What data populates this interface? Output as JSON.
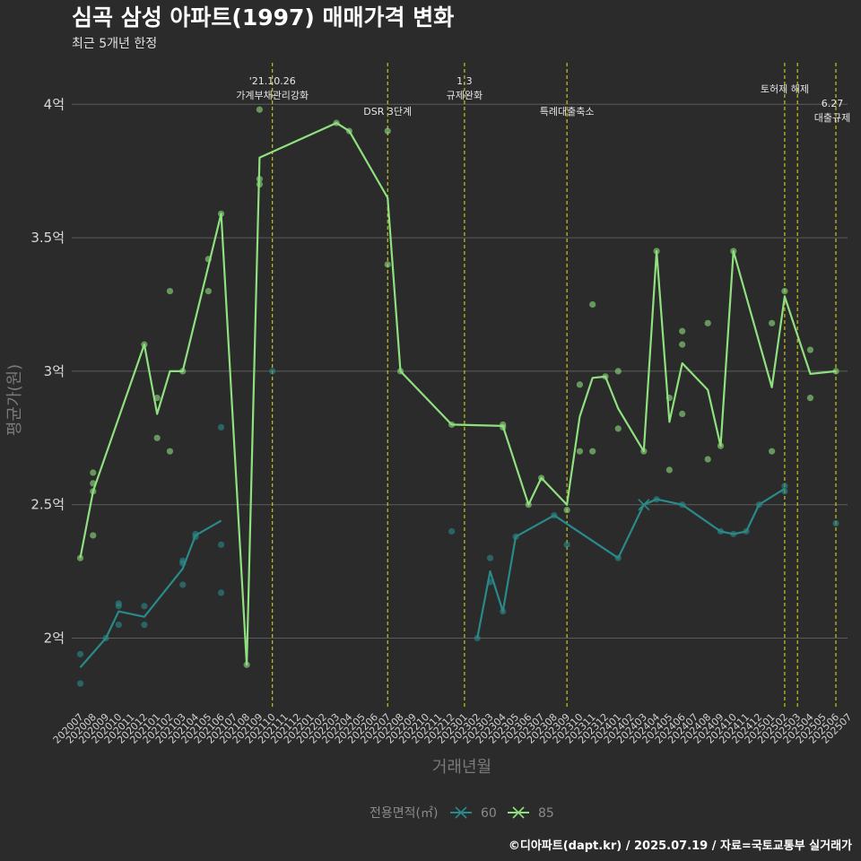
{
  "chart_data": {
    "type": "line",
    "title": "심곡 삼성 아파트(1997) 매매가격 변화",
    "subtitle": "최근 5개년 한정",
    "xlabel": "거래년월",
    "ylabel": "평균가(원)",
    "caption": "©디아파트(dapt.kr) / 2025.07.19 / 자료=국토교통부 실거래가",
    "categories": [
      "202007",
      "202008",
      "202009",
      "202010",
      "202011",
      "202012",
      "202101",
      "202102",
      "202103",
      "202104",
      "202105",
      "202106",
      "202107",
      "202108",
      "202109",
      "202110",
      "202111",
      "202112",
      "202201",
      "202202",
      "202203",
      "202204",
      "202205",
      "202206",
      "202207",
      "202208",
      "202209",
      "202210",
      "202211",
      "202212",
      "202301",
      "202302",
      "202303",
      "202304",
      "202305",
      "202306",
      "202307",
      "202308",
      "202309",
      "202310",
      "202311",
      "202312",
      "202401",
      "202402",
      "202403",
      "202404",
      "202405",
      "202406",
      "202407",
      "202408",
      "202409",
      "202410",
      "202411",
      "202412",
      "202501",
      "202502",
      "202503",
      "202504",
      "202505",
      "202506",
      "202507"
    ],
    "yticks": [
      {
        "value": 2.0,
        "label": "2억"
      },
      {
        "value": 2.5,
        "label": "2.5억"
      },
      {
        "value": 3.0,
        "label": "3억"
      },
      {
        "value": 3.5,
        "label": "3.5억"
      },
      {
        "value": 4.0,
        "label": "4억"
      }
    ],
    "ylim": [
      1.7,
      4.15
    ],
    "grid": true,
    "legend": {
      "title": "전용면적(㎡)",
      "position": "bottom"
    },
    "series": [
      {
        "name": "60",
        "color": "#2a8a8a",
        "line": [
          {
            "x": "202007",
            "y": 1.89
          },
          {
            "x": "202009",
            "y": 2.0
          },
          {
            "x": "202010",
            "y": 2.1
          },
          {
            "x": "202012",
            "y": 2.08
          },
          {
            "x": "202103",
            "y": 2.26
          },
          {
            "x": "202104",
            "y": 2.385
          },
          {
            "x": "202106",
            "y": 2.44
          },
          {
            "x": "202302",
            "y": 2.0
          },
          {
            "x": "202303",
            "y": 2.25
          },
          {
            "x": "202304",
            "y": 2.1
          },
          {
            "x": "202305",
            "y": 2.38
          },
          {
            "x": "202308",
            "y": 2.46
          },
          {
            "x": "202401",
            "y": 2.3
          },
          {
            "x": "202403",
            "y": 2.5
          },
          {
            "x": "202404",
            "y": 2.52
          },
          {
            "x": "202406",
            "y": 2.5
          },
          {
            "x": "202409",
            "y": 2.4
          },
          {
            "x": "202410",
            "y": 2.39
          },
          {
            "x": "202411",
            "y": 2.4
          },
          {
            "x": "202412",
            "y": 2.5
          },
          {
            "x": "202502",
            "y": 2.56
          }
        ],
        "breaks_after": [
          "202106"
        ],
        "points": [
          {
            "x": "202007",
            "y": 1.94
          },
          {
            "x": "202007",
            "y": 1.83
          },
          {
            "x": "202009",
            "y": 2.0
          },
          {
            "x": "202010",
            "y": 2.05
          },
          {
            "x": "202010",
            "y": 2.12
          },
          {
            "x": "202010",
            "y": 2.13
          },
          {
            "x": "202012",
            "y": 2.05
          },
          {
            "x": "202012",
            "y": 2.12
          },
          {
            "x": "202103",
            "y": 2.2
          },
          {
            "x": "202103",
            "y": 2.28
          },
          {
            "x": "202103",
            "y": 2.29
          },
          {
            "x": "202104",
            "y": 2.38
          },
          {
            "x": "202104",
            "y": 2.39
          },
          {
            "x": "202106",
            "y": 2.17
          },
          {
            "x": "202106",
            "y": 2.35
          },
          {
            "x": "202106",
            "y": 2.79
          },
          {
            "x": "202110",
            "y": 3.0
          },
          {
            "x": "202212",
            "y": 2.4
          },
          {
            "x": "202302",
            "y": 2.0
          },
          {
            "x": "202303",
            "y": 2.3
          },
          {
            "x": "202303",
            "y": 2.21
          },
          {
            "x": "202304",
            "y": 2.1
          },
          {
            "x": "202305",
            "y": 2.38
          },
          {
            "x": "202308",
            "y": 2.46
          },
          {
            "x": "202309",
            "y": 2.35
          },
          {
            "x": "202401",
            "y": 2.3
          },
          {
            "x": "202404",
            "y": 2.52
          },
          {
            "x": "202406",
            "y": 2.5
          },
          {
            "x": "202409",
            "y": 2.4
          },
          {
            "x": "202410",
            "y": 2.39
          },
          {
            "x": "202411",
            "y": 2.4
          },
          {
            "x": "202412",
            "y": 2.5
          },
          {
            "x": "202502",
            "y": 2.55
          },
          {
            "x": "202502",
            "y": 2.57
          },
          {
            "x": "202506",
            "y": 2.43
          }
        ],
        "cross_marker": {
          "x": "202403",
          "y": 2.5
        }
      },
      {
        "name": "85",
        "color": "#8fe07f",
        "line": [
          {
            "x": "202007",
            "y": 2.3
          },
          {
            "x": "202008",
            "y": 2.55
          },
          {
            "x": "202012",
            "y": 3.1
          },
          {
            "x": "202101",
            "y": 2.84
          },
          {
            "x": "202102",
            "y": 3.0
          },
          {
            "x": "202103",
            "y": 3.0
          },
          {
            "x": "202106",
            "y": 3.59
          },
          {
            "x": "202108",
            "y": 1.9
          },
          {
            "x": "202109",
            "y": 3.8
          },
          {
            "x": "202203",
            "y": 3.93
          },
          {
            "x": "202204",
            "y": 3.9
          },
          {
            "x": "202207",
            "y": 3.65
          },
          {
            "x": "202208",
            "y": 3.0
          },
          {
            "x": "202212",
            "y": 2.8
          },
          {
            "x": "202304",
            "y": 2.795
          },
          {
            "x": "202306",
            "y": 2.5
          },
          {
            "x": "202307",
            "y": 2.6
          },
          {
            "x": "202309",
            "y": 2.5
          },
          {
            "x": "202310",
            "y": 2.83
          },
          {
            "x": "202311",
            "y": 2.975
          },
          {
            "x": "202312",
            "y": 2.98
          },
          {
            "x": "202401",
            "y": 2.86
          },
          {
            "x": "202403",
            "y": 2.7
          },
          {
            "x": "202404",
            "y": 3.45
          },
          {
            "x": "202405",
            "y": 2.81
          },
          {
            "x": "202406",
            "y": 3.03
          },
          {
            "x": "202408",
            "y": 2.93
          },
          {
            "x": "202409",
            "y": 2.72
          },
          {
            "x": "202410",
            "y": 3.45
          },
          {
            "x": "202501",
            "y": 2.94
          },
          {
            "x": "202502",
            "y": 3.28
          },
          {
            "x": "202504",
            "y": 2.99
          },
          {
            "x": "202506",
            "y": 3.0
          }
        ],
        "breaks_after": [],
        "points": [
          {
            "x": "202007",
            "y": 2.3
          },
          {
            "x": "202008",
            "y": 2.55
          },
          {
            "x": "202008",
            "y": 2.58
          },
          {
            "x": "202008",
            "y": 2.62
          },
          {
            "x": "202008",
            "y": 2.385
          },
          {
            "x": "202012",
            "y": 3.1
          },
          {
            "x": "202101",
            "y": 2.75
          },
          {
            "x": "202101",
            "y": 2.9
          },
          {
            "x": "202102",
            "y": 3.3
          },
          {
            "x": "202102",
            "y": 2.7
          },
          {
            "x": "202103",
            "y": 3.0
          },
          {
            "x": "202105",
            "y": 3.3
          },
          {
            "x": "202105",
            "y": 3.42
          },
          {
            "x": "202106",
            "y": 3.59
          },
          {
            "x": "202108",
            "y": 1.9
          },
          {
            "x": "202109",
            "y": 3.7
          },
          {
            "x": "202109",
            "y": 3.72
          },
          {
            "x": "202109",
            "y": 3.98
          },
          {
            "x": "202203",
            "y": 3.93
          },
          {
            "x": "202204",
            "y": 3.9
          },
          {
            "x": "202207",
            "y": 3.9
          },
          {
            "x": "202207",
            "y": 3.4
          },
          {
            "x": "202208",
            "y": 3.0
          },
          {
            "x": "202212",
            "y": 2.8
          },
          {
            "x": "202304",
            "y": 2.8
          },
          {
            "x": "202304",
            "y": 2.79
          },
          {
            "x": "202306",
            "y": 2.5
          },
          {
            "x": "202307",
            "y": 2.6
          },
          {
            "x": "202309",
            "y": 2.48
          },
          {
            "x": "202310",
            "y": 2.95
          },
          {
            "x": "202310",
            "y": 2.7
          },
          {
            "x": "202311",
            "y": 3.25
          },
          {
            "x": "202311",
            "y": 2.7
          },
          {
            "x": "202312",
            "y": 2.98
          },
          {
            "x": "202401",
            "y": 3.0
          },
          {
            "x": "202401",
            "y": 2.785
          },
          {
            "x": "202403",
            "y": 2.7
          },
          {
            "x": "202404",
            "y": 3.45
          },
          {
            "x": "202405",
            "y": 2.9
          },
          {
            "x": "202405",
            "y": 2.63
          },
          {
            "x": "202406",
            "y": 3.15
          },
          {
            "x": "202406",
            "y": 3.1
          },
          {
            "x": "202406",
            "y": 2.84
          },
          {
            "x": "202408",
            "y": 3.18
          },
          {
            "x": "202408",
            "y": 2.67
          },
          {
            "x": "202409",
            "y": 2.72
          },
          {
            "x": "202410",
            "y": 3.45
          },
          {
            "x": "202501",
            "y": 3.18
          },
          {
            "x": "202501",
            "y": 2.7
          },
          {
            "x": "202502",
            "y": 3.3
          },
          {
            "x": "202504",
            "y": 3.08
          },
          {
            "x": "202504",
            "y": 2.9
          },
          {
            "x": "202506",
            "y": 3.0
          }
        ]
      }
    ],
    "events": [
      {
        "x": "202110",
        "lines": [
          "'21.10.26",
          "가계부채관리강화"
        ],
        "level": "high"
      },
      {
        "x": "202207",
        "lines": [
          "DSR 3단계"
        ],
        "level": "low"
      },
      {
        "x": "202301",
        "lines": [
          "1.3",
          "규제완화"
        ],
        "level": "high"
      },
      {
        "x": "202309",
        "lines": [
          "특례대출축소"
        ],
        "level": "low"
      },
      {
        "x": "202502",
        "lines": [
          "토허제 해제"
        ],
        "level": "mid"
      },
      {
        "x": "202503",
        "lines": [],
        "level": "none"
      },
      {
        "x": "202506",
        "lines": [
          "6.27",
          "대출규제"
        ],
        "level": "right"
      }
    ]
  }
}
